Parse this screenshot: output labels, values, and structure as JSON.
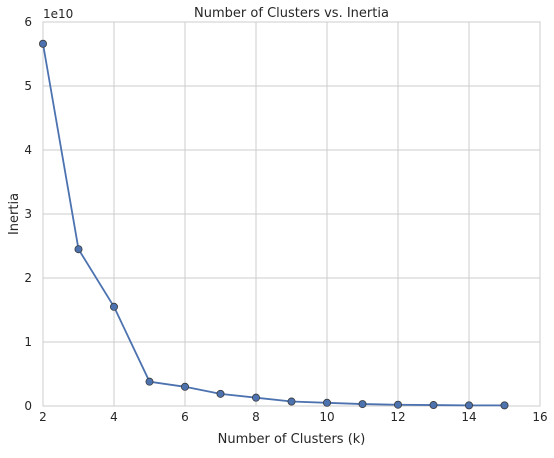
{
  "chart_data": {
    "type": "line",
    "title": "Number of Clusters vs. Inertia",
    "xlabel": "Number of Clusters (k)",
    "ylabel": "Inertia",
    "y_exponent_label": "1e10",
    "xlim": [
      2,
      16
    ],
    "ylim": [
      0,
      6
    ],
    "x_ticks": [
      2,
      4,
      6,
      8,
      10,
      12,
      14,
      16
    ],
    "y_ticks": [
      0,
      1,
      2,
      3,
      4,
      5,
      6
    ],
    "grid": true,
    "y_units_multiplier": 10000000000,
    "series": [
      {
        "color": "#4c72b0",
        "marker": "circle",
        "x": [
          2,
          3,
          4,
          5,
          6,
          7,
          8,
          9,
          10,
          11,
          12,
          13,
          14,
          15
        ],
        "y": [
          5.66,
          2.45,
          1.55,
          0.38,
          0.3,
          0.19,
          0.13,
          0.07,
          0.05,
          0.03,
          0.02,
          0.015,
          0.01,
          0.01
        ]
      }
    ]
  }
}
